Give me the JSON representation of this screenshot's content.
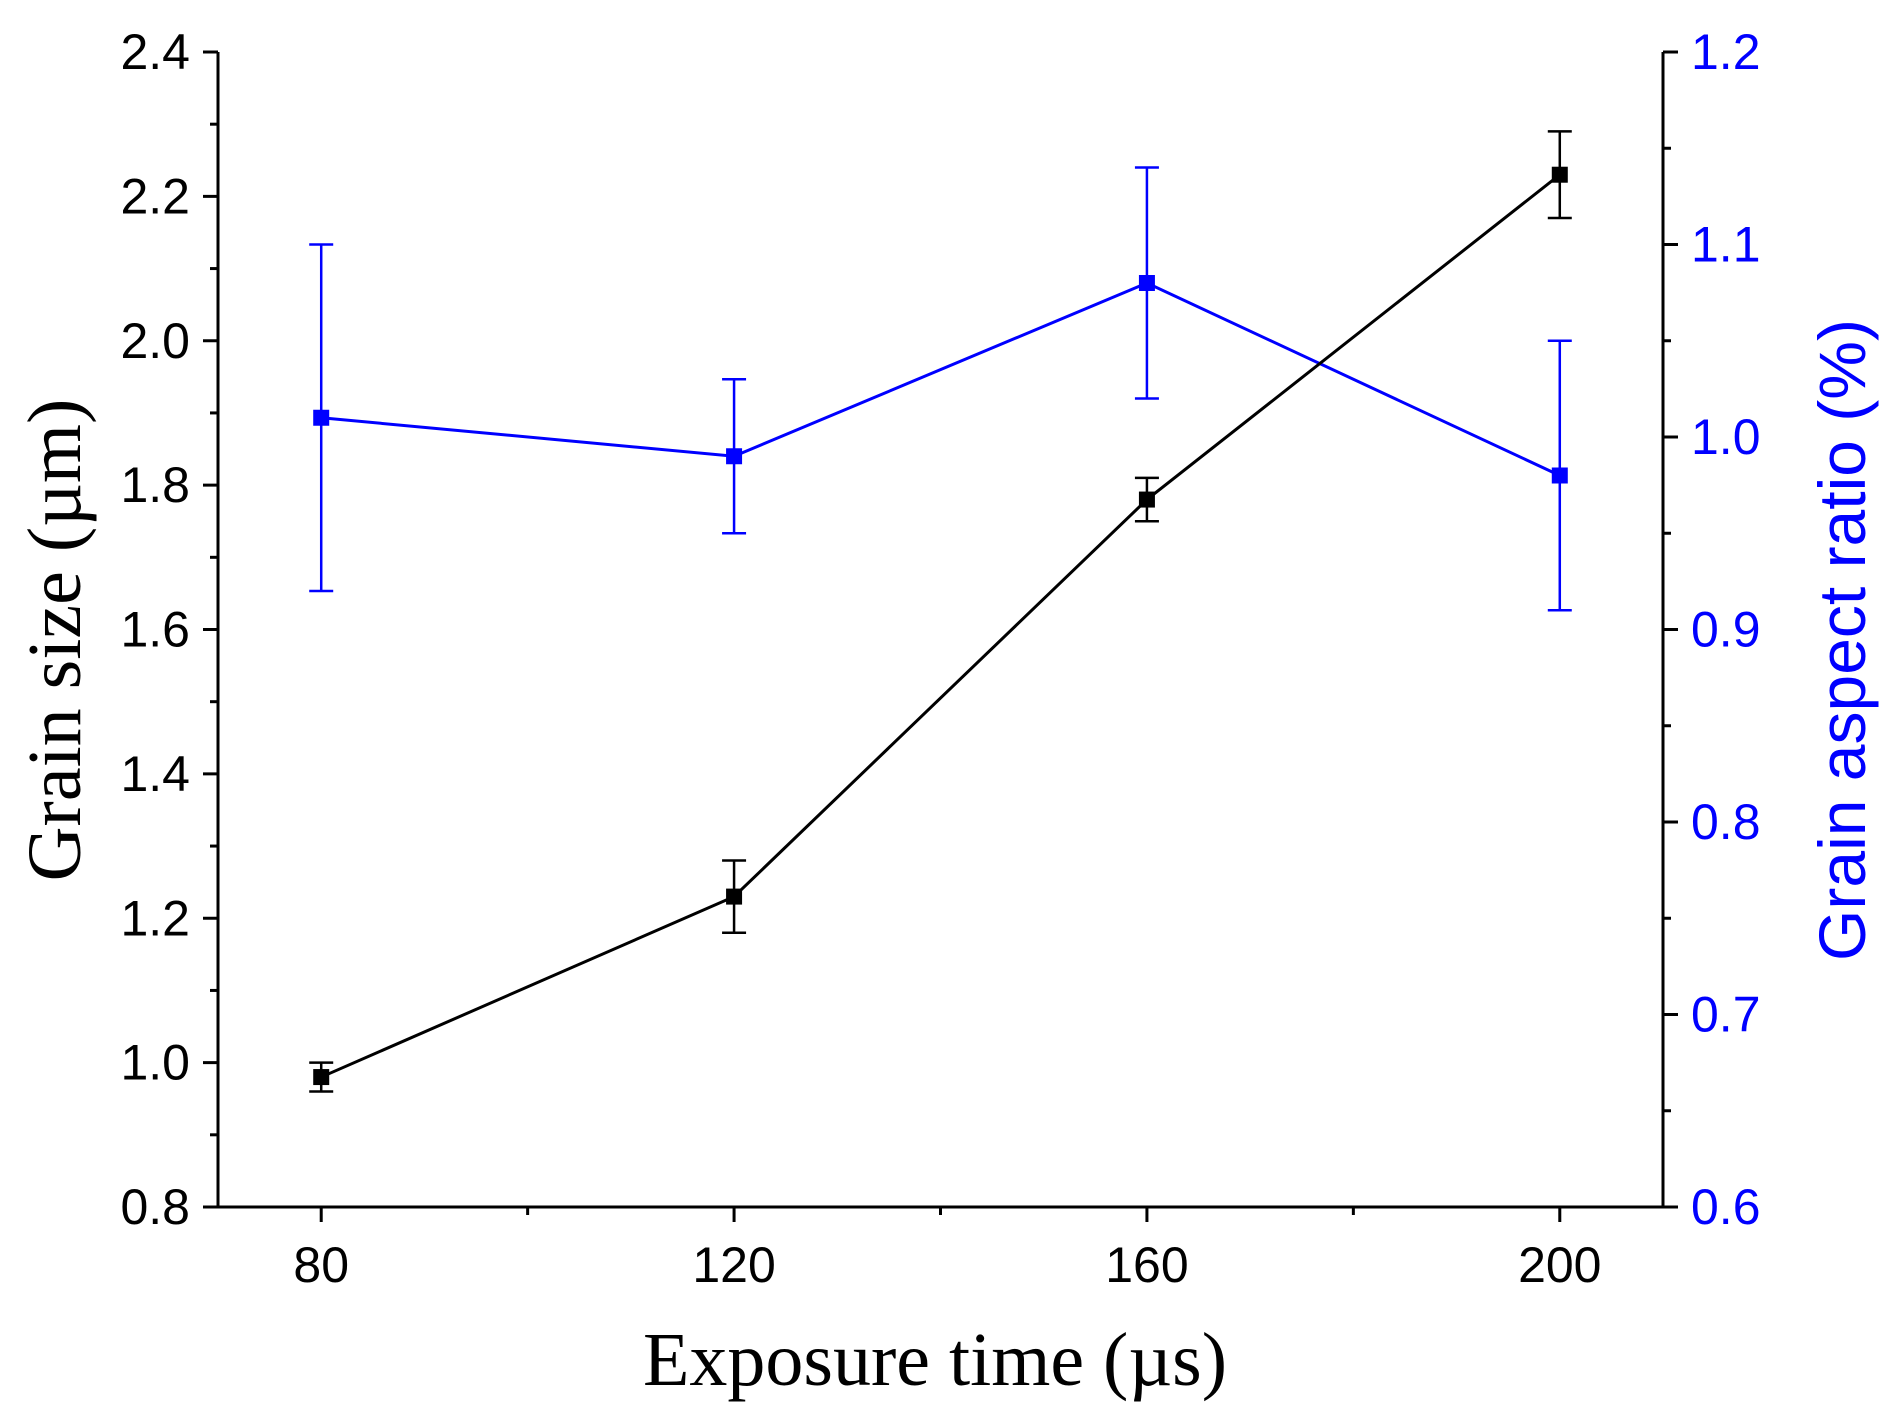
{
  "chart_data": {
    "type": "line",
    "title": "",
    "xlabel": "Exposure time (µs)",
    "ylabel": "Grain size (µm)",
    "y2label": "Grain aspect ratio (%)",
    "x": [
      80,
      120,
      160,
      200
    ],
    "xlim": [
      70,
      210
    ],
    "xticks": [
      80,
      120,
      160,
      200
    ],
    "xtick_labels": [
      "80",
      "120",
      "160",
      "200"
    ],
    "ylim": [
      0.8,
      2.4
    ],
    "yticks": [
      0.8,
      1.0,
      1.2,
      1.4,
      1.6,
      1.8,
      2.0,
      2.2,
      2.4
    ],
    "ytick_labels": [
      "0.8",
      "1.0",
      "1.2",
      "1.4",
      "1.6",
      "1.8",
      "2.0",
      "2.2",
      "2.4"
    ],
    "y2lim": [
      0.6,
      1.2
    ],
    "y2ticks": [
      0.6,
      0.7,
      0.8,
      0.9,
      1.0,
      1.1,
      1.2
    ],
    "y2tick_labels": [
      "0.6",
      "0.7",
      "0.8",
      "0.9",
      "1.0",
      "1.1",
      "1.2"
    ],
    "grid": false,
    "series": [
      {
        "name": "Grain size",
        "axis": "left",
        "color": "#000000",
        "marker": "square",
        "values": [
          0.98,
          1.23,
          1.78,
          2.23
        ],
        "errors": [
          0.02,
          0.05,
          0.03,
          0.06
        ]
      },
      {
        "name": "Grain aspect ratio",
        "axis": "right",
        "color": "#0000ff",
        "marker": "square",
        "values": [
          1.01,
          0.99,
          1.08,
          0.98
        ],
        "err_low": [
          0.09,
          0.04,
          0.06,
          0.07
        ],
        "err_high": [
          0.09,
          0.04,
          0.06,
          0.07
        ]
      }
    ]
  }
}
